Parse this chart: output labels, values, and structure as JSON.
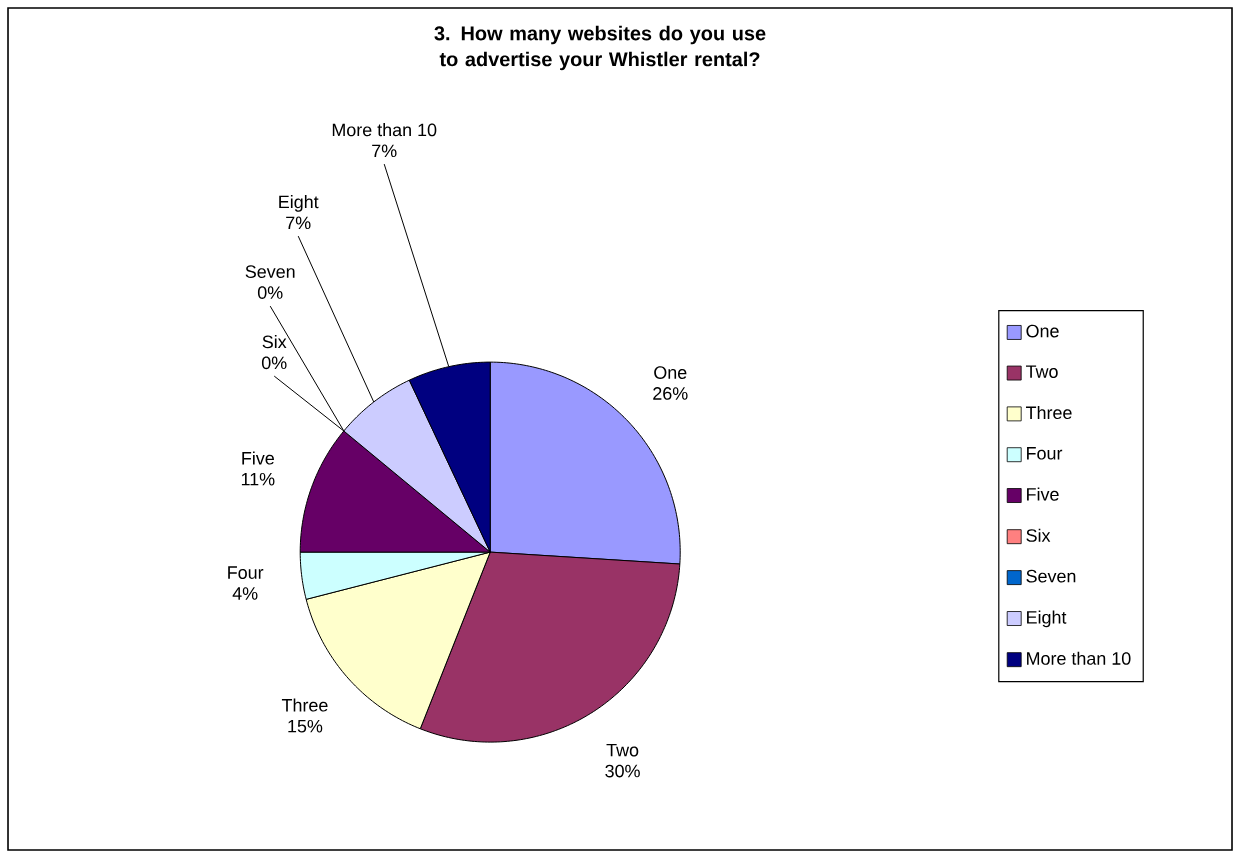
{
  "chart_data": {
    "type": "pie",
    "title": "3.  How many websites do you use to advertise your Whistler rental?",
    "categories": [
      "One",
      "Two",
      "Three",
      "Four",
      "Five",
      "Six",
      "Seven",
      "Eight",
      "More than 10"
    ],
    "values": [
      26,
      30,
      15,
      4,
      11,
      0,
      0,
      7,
      7
    ],
    "value_labels": [
      "26%",
      "30%",
      "15%",
      "4%",
      "11%",
      "0%",
      "0%",
      "7%",
      "7%"
    ],
    "colors": [
      "#9999ff",
      "#993366",
      "#ffffcc",
      "#ccffff",
      "#660066",
      "#ff8080",
      "#0066cc",
      "#ccccff",
      "#000080"
    ],
    "legend": "right"
  }
}
